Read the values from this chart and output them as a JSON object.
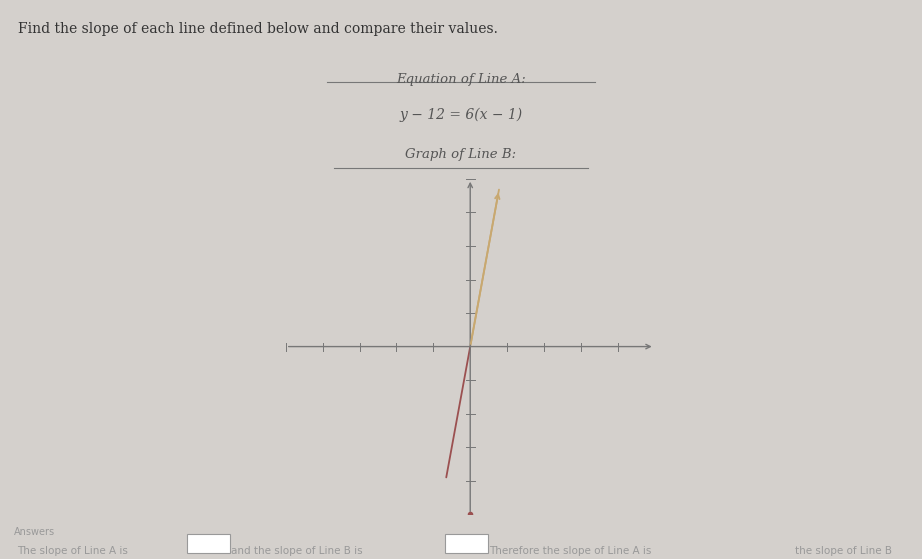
{
  "background_color": "#d4d0cc",
  "title_text": "Find the slope of each line defined below and compare their values.",
  "title_fontsize": 10,
  "title_color": "#333333",
  "eq_line_a_label": "Equation of Line A:",
  "eq_line_a_eq": "y − 12 = 6(x − 1)",
  "graph_line_b_label": "Graph of Line B:",
  "line_b_slope": 6,
  "line_b_color_upper": "#c8a870",
  "line_b_color_lower": "#9b5050",
  "axis_color": "#777777",
  "axis_xlim": [
    -5,
    5
  ],
  "axis_ylim": [
    -5,
    5
  ],
  "answer_text": "The slope of Line A is",
  "answer_text2": "and the slope of Line B is",
  "answer_text3": "Therefore the slope of Line A is",
  "answer_text4": "the slope of Line B",
  "answer_label": "Answers",
  "label_color": "#999999",
  "eq_color": "#555555",
  "underline_color": "#777777"
}
